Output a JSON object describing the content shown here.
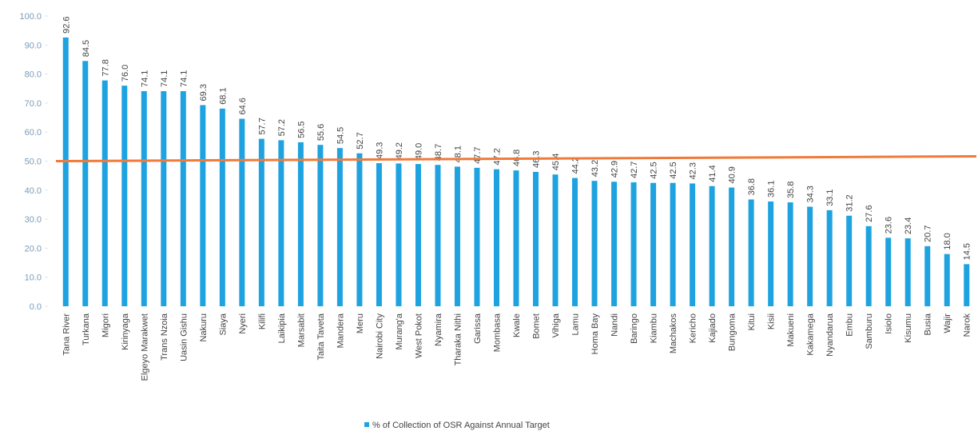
{
  "chart_data": {
    "type": "bar",
    "series": [
      {
        "name": "% of Collection of OSR Against Annual Target",
        "color": "#1fa3e0",
        "values": [
          92.6,
          84.5,
          77.8,
          76.0,
          74.1,
          74.1,
          74.1,
          69.3,
          68.1,
          64.6,
          57.7,
          57.2,
          56.5,
          55.6,
          54.5,
          52.7,
          49.3,
          49.2,
          49.0,
          48.7,
          48.1,
          47.7,
          47.2,
          46.8,
          46.3,
          45.4,
          44.2,
          43.2,
          42.9,
          42.7,
          42.5,
          42.5,
          42.3,
          41.4,
          40.9,
          36.8,
          36.1,
          35.8,
          34.3,
          33.1,
          31.2,
          27.6,
          23.6,
          23.4,
          20.7,
          18.0,
          14.5
        ],
        "value_labels": [
          "92.6",
          "84.5",
          "77.8",
          "76.0",
          "74.1",
          "74.1",
          "74.1",
          "69.3",
          "68.1",
          "64.6",
          "57.7",
          "57.2",
          "56.5",
          "55.6",
          "54.5",
          "52.7",
          "49.3",
          "49.2",
          "49.0",
          "48.7",
          "48.1",
          "47.7",
          "47.2",
          "46.8",
          "46.3",
          "45.4",
          "44.2",
          "43.2",
          "42.9",
          "42.7",
          "42.5",
          "42.5",
          "42.3",
          "41.4",
          "40.9",
          "36.8",
          "36.1",
          "35.8",
          "34.3",
          "33.1",
          "31.2",
          "27.6",
          "23.6",
          "23.4",
          "20.7",
          "18.0",
          "14.5"
        ]
      }
    ],
    "categories": [
      "Tana River",
      "Turkana",
      "Migori",
      "Kirinyaga",
      "Elgeyo Marakwet",
      "Trans Nzoia",
      "Uasin Gishu",
      "Nakuru",
      "Siaya",
      "Nyeri",
      "Kilifi",
      "Laikipia",
      "Marsabit",
      "Taita Taveta",
      "Mandera",
      "Meru",
      "Nairobi City",
      "Murang'a",
      "West Pokot",
      "Nyamira",
      "Tharaka Nithi",
      "Garissa",
      "Mombasa",
      "Kwale",
      "Bomet",
      "Vihiga",
      "Lamu",
      "Homa Bay",
      "Nandi",
      "Baringo",
      "Kiambu",
      "Machakos",
      "Kericho",
      "Kajiado",
      "Bungoma",
      "Kitui",
      "Kisii",
      "Makueni",
      "Kakamega",
      "Nyandarua",
      "Embu",
      "Samburu",
      "Isiolo",
      "Kisumu",
      "Busia",
      "Wajir",
      "Narok"
    ],
    "ylim": [
      0,
      100
    ],
    "yticks": [
      {
        "value": 0,
        "label": "0.0"
      },
      {
        "value": 10,
        "label": "10.0"
      },
      {
        "value": 20,
        "label": "20.0"
      },
      {
        "value": 30,
        "label": "30.0"
      },
      {
        "value": 40,
        "label": "40.0"
      },
      {
        "value": 50,
        "label": "50.0"
      },
      {
        "value": 60,
        "label": "60.0"
      },
      {
        "value": 70,
        "label": "70.0"
      },
      {
        "value": 80,
        "label": "80.0"
      },
      {
        "value": 90,
        "label": "90.0"
      },
      {
        "value": 100,
        "label": "100.0"
      }
    ],
    "reference_line": {
      "value": 50,
      "color": "#f07a3a"
    },
    "legend": "bottom"
  }
}
